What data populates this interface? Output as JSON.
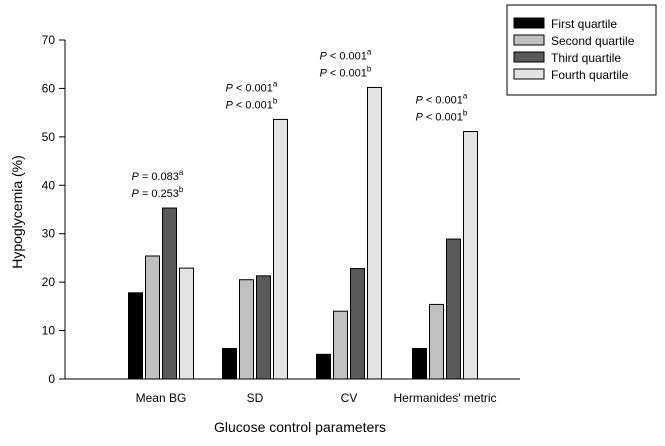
{
  "chart_data": {
    "type": "bar",
    "xlabel": "Glucose control parameters",
    "ylabel": "Hypoglycemia (%)",
    "ylim": [
      0,
      70
    ],
    "yticks": [
      0,
      10,
      20,
      30,
      40,
      50,
      60,
      70
    ],
    "categories": [
      "Mean BG",
      "SD",
      "CV",
      "Hermanides' metric"
    ],
    "series": [
      {
        "name": "First quartile",
        "color": "#000000",
        "values": [
          17.8,
          6.3,
          5.1,
          6.3
        ]
      },
      {
        "name": "Second quartile",
        "color": "#c0c0c0",
        "values": [
          25.4,
          20.5,
          14.0,
          15.4
        ]
      },
      {
        "name": "Third quartile",
        "color": "#5a5a5a",
        "values": [
          35.3,
          21.3,
          22.8,
          28.9
        ]
      },
      {
        "name": "Fourth quartile",
        "color": "#e3e3e3",
        "values": [
          22.9,
          53.6,
          60.2,
          51.1
        ]
      }
    ],
    "annotations": [
      {
        "line1": {
          "p": "P",
          "rest": " = 0.083",
          "sup": "a"
        },
        "line2": {
          "p": "P",
          "rest": " = 0.253",
          "sup": "b"
        }
      },
      {
        "line1": {
          "p": "P",
          "rest": " < 0.001",
          "sup": "a"
        },
        "line2": {
          "p": "P",
          "rest": " < 0.001",
          "sup": "b"
        }
      },
      {
        "line1": {
          "p": "P",
          "rest": " < 0.001",
          "sup": "a"
        },
        "line2": {
          "p": "P",
          "rest": " < 0.001",
          "sup": "b"
        }
      },
      {
        "line1": {
          "p": "P",
          "rest": " < 0.001",
          "sup": "a"
        },
        "line2": {
          "p": "P",
          "rest": " < 0.001",
          "sup": "b"
        }
      }
    ],
    "legend_position": "top-right",
    "grid": false
  }
}
